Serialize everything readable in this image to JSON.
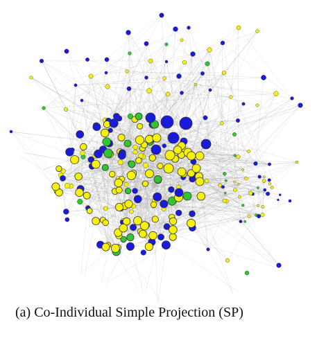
{
  "figure": {
    "caption": "(a) Co-Individual Simple Projection (SP)"
  },
  "legend_colors": {
    "blue": "#1a1adb",
    "yellow": "#f5f10c",
    "green": "#2fc62f",
    "edge": "#9a9a9a",
    "node_stroke": "#333333"
  }
}
